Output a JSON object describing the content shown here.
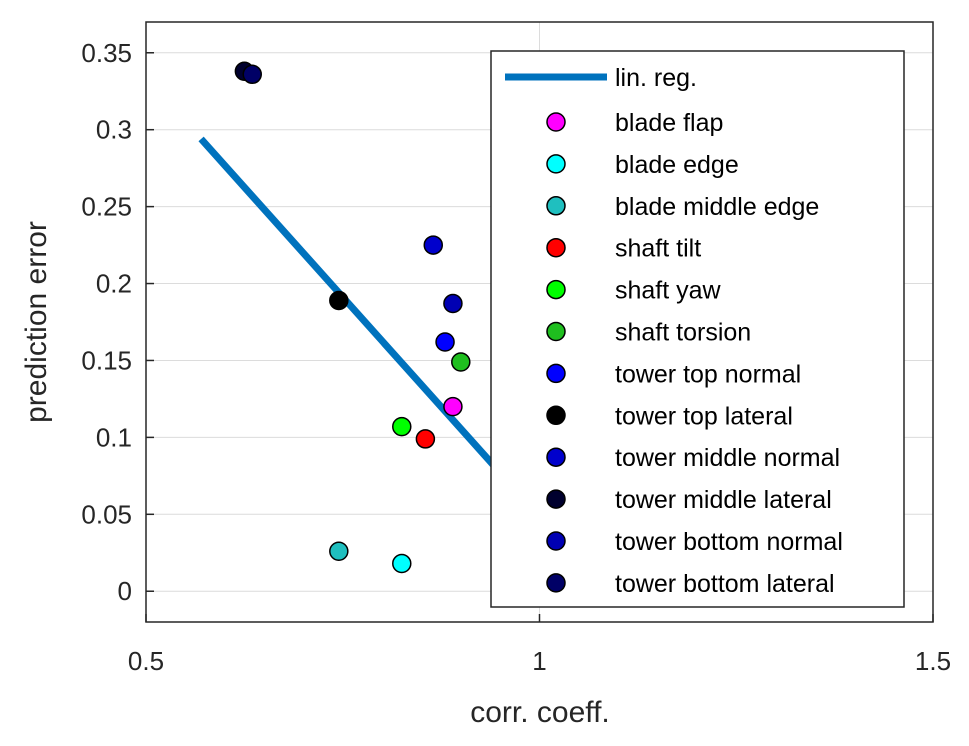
{
  "chart_data": {
    "type": "scatter",
    "xlabel": "corr. coeff.",
    "ylabel": "prediction error",
    "xlim": [
      0.5,
      1.5
    ],
    "ylim": [
      -0.02,
      0.37
    ],
    "xticks": [
      0.5,
      1,
      1.5
    ],
    "xtick_labels": [
      "0.5",
      "1",
      "1.5"
    ],
    "yticks": [
      0,
      0.05,
      0.1,
      0.15,
      0.2,
      0.25,
      0.3,
      0.35
    ],
    "ytick_labels": [
      "0",
      "0.05",
      "0.1",
      "0.15",
      "0.2",
      "0.25",
      "0.3",
      "0.35"
    ],
    "grid": true,
    "legend_position": "top-right",
    "regression": {
      "name": "lin. reg.",
      "color": "#0072BD",
      "x": [
        0.57,
        1.085
      ],
      "y": [
        0.294,
        0.0
      ]
    },
    "series": [
      {
        "name": "blade flap",
        "color": "#FF00FF",
        "x": 0.89,
        "y": 0.12
      },
      {
        "name": "blade edge",
        "color": "#00FFFF",
        "x": 0.825,
        "y": 0.018
      },
      {
        "name": "blade middle edge",
        "color": "#1FBFBF",
        "x": 0.745,
        "y": 0.026
      },
      {
        "name": "shaft tilt",
        "color": "#FF0000",
        "x": 0.855,
        "y": 0.099
      },
      {
        "name": "shaft yaw",
        "color": "#00FF00",
        "x": 0.825,
        "y": 0.107
      },
      {
        "name": "shaft torsion",
        "color": "#1FBF1F",
        "x": 0.9,
        "y": 0.149
      },
      {
        "name": "tower top normal",
        "color": "#0000FF",
        "x": 0.88,
        "y": 0.162
      },
      {
        "name": "tower top lateral",
        "color": "#000000",
        "x": 0.745,
        "y": 0.189
      },
      {
        "name": "tower middle normal",
        "color": "#0000CC",
        "x": 0.865,
        "y": 0.225
      },
      {
        "name": "tower middle lateral",
        "color": "#00002E",
        "x": 0.625,
        "y": 0.338
      },
      {
        "name": "tower bottom normal",
        "color": "#0000B3",
        "x": 0.89,
        "y": 0.187
      },
      {
        "name": "tower bottom lateral",
        "color": "#000066",
        "x": 0.635,
        "y": 0.336
      }
    ]
  }
}
